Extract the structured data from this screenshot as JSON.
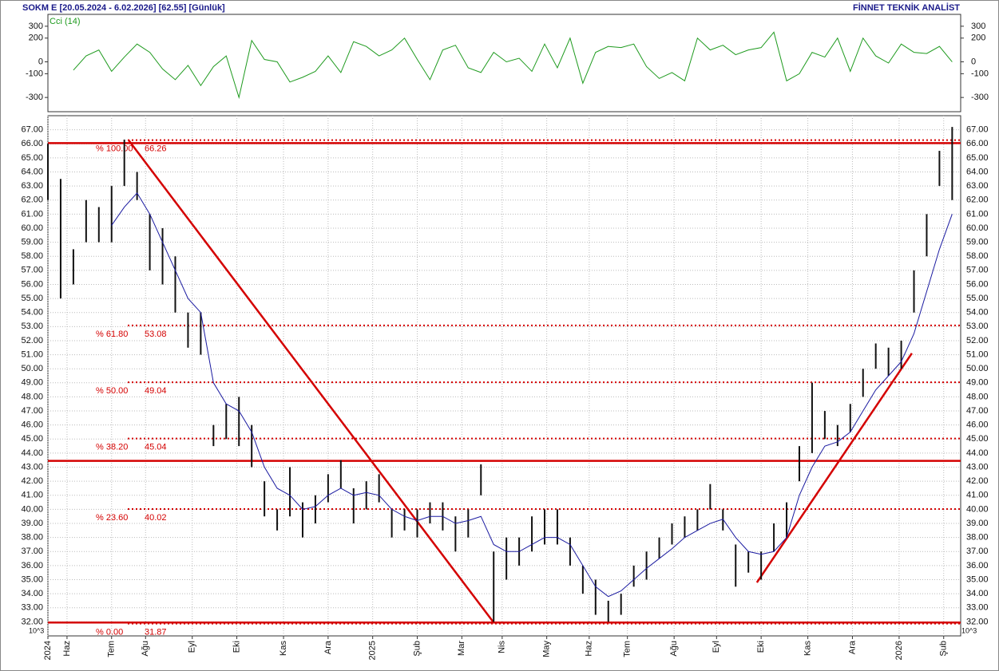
{
  "header": {
    "title": "SOKM  E  [20.05.2024 - 6.02.2026]  [62.55]  [Günlük]",
    "brand": "FİNNET TEKNİK ANALİST"
  },
  "chart_data": [
    {
      "type": "line",
      "title": "Cci (14)",
      "color": "#1e9a1e",
      "ylim": [
        -420,
        400
      ],
      "yticks": [
        300,
        200,
        0,
        -100,
        -300
      ],
      "x": [
        0,
        6,
        12,
        18,
        24,
        30,
        36,
        42,
        48,
        54,
        60,
        66,
        72,
        78,
        84,
        90,
        96,
        102,
        108,
        114,
        120,
        126,
        132,
        138,
        144,
        150,
        156,
        162,
        168,
        174,
        180,
        186,
        192,
        198,
        204,
        210,
        216,
        222,
        228,
        234,
        240,
        246,
        252,
        258,
        264,
        270,
        276,
        282,
        288,
        294,
        300,
        306,
        312,
        318,
        324,
        330,
        336,
        342,
        348,
        354,
        360,
        366,
        372,
        378,
        384,
        390,
        396,
        402,
        408,
        414,
        420,
        426
      ],
      "values": [
        null,
        null,
        -70,
        50,
        100,
        -80,
        40,
        150,
        80,
        -60,
        -150,
        -30,
        -200,
        -40,
        50,
        -300,
        180,
        20,
        0,
        -170,
        -130,
        -80,
        50,
        -90,
        170,
        130,
        50,
        100,
        200,
        20,
        -150,
        100,
        140,
        -50,
        -90,
        80,
        0,
        30,
        -80,
        150,
        -50,
        200,
        -180,
        80,
        130,
        120,
        150,
        -40,
        -140,
        -90,
        -160,
        200,
        100,
        140,
        60,
        100,
        120,
        250,
        -160,
        -100,
        80,
        40,
        200,
        -80,
        200,
        50,
        -10,
        150,
        80,
        70,
        130,
        0
      ]
    },
    {
      "type": "hl-bars",
      "color": "#111111",
      "multiplier": "10^3",
      "ylim": [
        31,
        68
      ],
      "xlim": [
        0,
        430
      ],
      "grid": true,
      "yticks": [
        {
          "value": 32,
          "label": "32.00"
        },
        {
          "value": 33,
          "label": "33.00"
        },
        {
          "value": 34,
          "label": "34.00"
        },
        {
          "value": 35,
          "label": "35.00"
        },
        {
          "value": 36,
          "label": "36.00"
        },
        {
          "value": 37,
          "label": "37.00"
        },
        {
          "value": 38,
          "label": "38.00"
        },
        {
          "value": 39,
          "label": "39.00"
        },
        {
          "value": 40,
          "label": "40.00"
        },
        {
          "value": 41,
          "label": "41.00"
        },
        {
          "value": 42,
          "label": "42.00"
        },
        {
          "value": 43,
          "label": "43.00"
        },
        {
          "value": 44,
          "label": "44.00"
        },
        {
          "value": 45,
          "label": "45.00"
        },
        {
          "value": 46,
          "label": "46.00"
        },
        {
          "value": 47,
          "label": "47.00"
        },
        {
          "value": 48,
          "label": "48.00"
        },
        {
          "value": 49,
          "label": "49.00"
        },
        {
          "value": 50,
          "label": "50.00"
        },
        {
          "value": 51,
          "label": "51.00"
        },
        {
          "value": 52,
          "label": "52.00"
        },
        {
          "value": 53,
          "label": "53.00"
        },
        {
          "value": 54,
          "label": "54.00"
        },
        {
          "value": 55,
          "label": "55.00"
        },
        {
          "value": 56,
          "label": "56.00"
        },
        {
          "value": 57,
          "label": "57.00"
        },
        {
          "value": 58,
          "label": "58.00"
        },
        {
          "value": 59,
          "label": "59.00"
        },
        {
          "value": 60,
          "label": "60.00"
        },
        {
          "value": 61,
          "label": "61.00"
        },
        {
          "value": 62,
          "label": "62.00"
        },
        {
          "value": 63,
          "label": "63.00"
        },
        {
          "value": 64,
          "label": "64.00"
        },
        {
          "value": 65,
          "label": "65.00"
        },
        {
          "value": 66,
          "label": "66.00"
        },
        {
          "value": 67,
          "label": "67.00"
        }
      ],
      "xticks": [
        {
          "value": 0,
          "label": "2024"
        },
        {
          "value": 9,
          "label": "Haz"
        },
        {
          "value": 30,
          "label": "Tem"
        },
        {
          "value": 46,
          "label": "Ağu"
        },
        {
          "value": 68,
          "label": "Eyl"
        },
        {
          "value": 89,
          "label": "Eki"
        },
        {
          "value": 111,
          "label": "Kas"
        },
        {
          "value": 132,
          "label": "Ara"
        },
        {
          "value": 153,
          "label": "2025"
        },
        {
          "value": 174,
          "label": "Şub"
        },
        {
          "value": 195,
          "label": "Mar"
        },
        {
          "value": 214,
          "label": "Nis"
        },
        {
          "value": 235,
          "label": "May"
        },
        {
          "value": 255,
          "label": "Haz"
        },
        {
          "value": 273,
          "label": "Tem"
        },
        {
          "value": 295,
          "label": "Ağu"
        },
        {
          "value": 315,
          "label": "Eyl"
        },
        {
          "value": 336,
          "label": "Eki"
        },
        {
          "value": 358,
          "label": "Kas"
        },
        {
          "value": 379,
          "label": "Ara"
        },
        {
          "value": 401,
          "label": "2026"
        },
        {
          "value": 422,
          "label": "Şub"
        }
      ],
      "x": [
        0,
        6,
        12,
        18,
        24,
        30,
        36,
        42,
        48,
        54,
        60,
        66,
        72,
        78,
        84,
        90,
        96,
        102,
        108,
        114,
        120,
        126,
        132,
        138,
        144,
        150,
        156,
        162,
        168,
        174,
        180,
        186,
        192,
        198,
        204,
        210,
        216,
        222,
        228,
        234,
        240,
        246,
        252,
        258,
        264,
        270,
        276,
        282,
        288,
        294,
        300,
        306,
        312,
        318,
        324,
        330,
        336,
        342,
        348,
        354,
        360,
        366,
        372,
        378,
        384,
        390,
        396,
        402,
        408,
        414,
        420,
        426
      ],
      "high": [
        66,
        63.5,
        58.5,
        62,
        61.5,
        63,
        66.3,
        64,
        61,
        60,
        58,
        54,
        54,
        46,
        47.5,
        48,
        46,
        42,
        40,
        43,
        40.5,
        41,
        42.5,
        43.5,
        41.5,
        42,
        42.5,
        40,
        40,
        40,
        40.5,
        40.5,
        39.5,
        40,
        43.2,
        37,
        38,
        38,
        39.5,
        40,
        40,
        38,
        36,
        35,
        33.5,
        34,
        36,
        37,
        38,
        39,
        39.5,
        40,
        41.8,
        40,
        37.5,
        37,
        37,
        39,
        40.5,
        44.5,
        49,
        47,
        46,
        47.5,
        50,
        51.8,
        51.5,
        52,
        57,
        61,
        65.5,
        67.2
      ],
      "low": [
        62,
        55,
        56,
        59,
        59,
        59,
        63,
        62,
        57,
        56,
        54,
        51.5,
        51,
        44.5,
        45,
        44.5,
        43,
        39.5,
        38.5,
        39.5,
        38,
        39,
        40.5,
        41.5,
        39,
        40,
        40.5,
        38,
        38.5,
        38,
        39,
        38.5,
        37,
        38,
        41,
        32,
        35,
        36,
        37,
        37.5,
        37.5,
        36,
        34,
        32.5,
        32,
        32.5,
        34.5,
        35,
        36.5,
        37.5,
        38,
        38.5,
        40,
        38.5,
        34.5,
        35.5,
        35,
        37,
        38,
        42,
        44,
        45,
        44.5,
        45.5,
        48,
        50,
        49.5,
        50,
        54,
        58,
        63,
        62
      ],
      "ma": {
        "color": "#1a1aa0",
        "values": [
          null,
          null,
          null,
          null,
          null,
          60.2,
          61.5,
          62.5,
          61,
          59,
          57,
          55,
          54,
          49,
          47.5,
          47,
          45.5,
          43,
          41.5,
          41,
          40,
          40.2,
          41,
          41.5,
          41,
          41.2,
          41,
          40,
          39.5,
          39.2,
          39.5,
          39.5,
          39,
          39.2,
          39.5,
          37.5,
          37,
          37,
          37.5,
          38,
          38,
          37.5,
          36,
          34.5,
          33.8,
          34.2,
          35,
          35.8,
          36.5,
          37.2,
          38,
          38.5,
          39,
          39.3,
          38,
          37,
          36.8,
          37,
          38,
          41,
          43,
          44.5,
          44.8,
          45.5,
          47,
          48.5,
          49.5,
          50.5,
          52.5,
          55.5,
          58.5,
          61
        ]
      },
      "line_color": "#d40000",
      "hlines": [
        66.05,
        43.45,
        31.95
      ],
      "fib_levels": [
        {
          "pct": "% 100.00",
          "value": 66.26
        },
        {
          "pct": "% 61.80",
          "value": 53.08
        },
        {
          "pct": "% 50.00",
          "value": 49.04
        },
        {
          "pct": "% 38.20",
          "value": 45.04
        },
        {
          "pct": "% 23.60",
          "value": 40.02
        },
        {
          "pct": "% 0.00",
          "value": 31.87
        }
      ],
      "trendlines": [
        {
          "x": [
            38,
            210
          ],
          "y": [
            66.26,
            31.95
          ]
        },
        {
          "x": [
            334,
            407
          ],
          "y": [
            34.8,
            51.1
          ]
        }
      ]
    }
  ]
}
